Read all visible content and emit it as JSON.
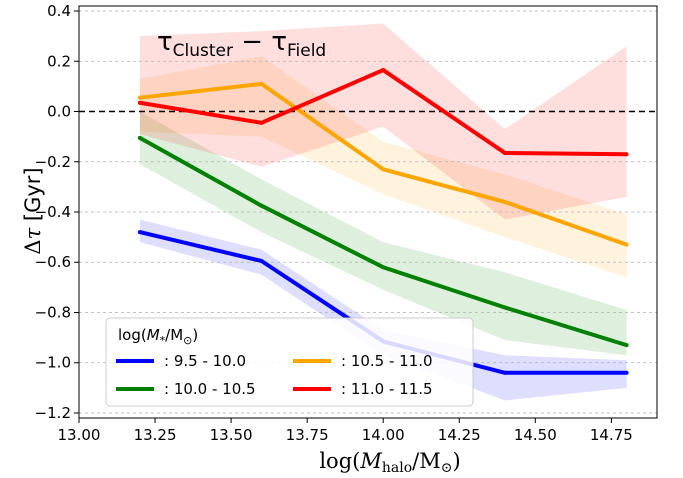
{
  "chart_data": {
    "type": "line",
    "annotation": {
      "main": "τ",
      "sub1": "Cluster",
      "dash": " − ",
      "main2": "τ",
      "sub2": "Field"
    },
    "xlabel": {
      "pre": "log(",
      "M": "M",
      "sub": "halo",
      "mid": "/M",
      "sun": "⊙",
      "post": ")"
    },
    "ylabel": {
      "delta": "Δ",
      "tau": "τ",
      "unit": " [Gyr]"
    },
    "xlim": [
      13.0,
      14.9
    ],
    "ylim": [
      -1.22,
      0.42
    ],
    "xticks": [
      13.0,
      13.25,
      13.5,
      13.75,
      14.0,
      14.25,
      14.5,
      14.75
    ],
    "xtick_labels": [
      "13.00",
      "13.25",
      "13.50",
      "13.75",
      "14.00",
      "14.25",
      "14.50",
      "14.75"
    ],
    "yticks": [
      0.4,
      0.2,
      0.0,
      -0.2,
      -0.4,
      -0.6,
      -0.8,
      -1.0,
      -1.2
    ],
    "ytick_labels": [
      "0.4",
      "0.2",
      "0.0",
      "−0.2",
      "−0.4",
      "−0.6",
      "−0.8",
      "−1.0",
      "−1.2"
    ],
    "grid": "horizontal-dashed",
    "reference_line": 0.0,
    "x": [
      13.2,
      13.6,
      14.0,
      14.4,
      14.8
    ],
    "legend": {
      "title": {
        "pre": "log(",
        "M": "M",
        "sub": "*",
        "post": "/M",
        "sun": "⊙",
        "end": ")"
      },
      "placement": "lower-left"
    },
    "series": [
      {
        "name": ": 9.5 - 10.0",
        "color": "#0000ff",
        "values": [
          -0.48,
          -0.595,
          -0.915,
          -1.04,
          -1.04
        ],
        "lower": [
          -0.52,
          -0.65,
          -0.97,
          -1.15,
          -1.1
        ],
        "upper": [
          -0.43,
          -0.55,
          -0.87,
          -0.97,
          -0.99
        ]
      },
      {
        "name": ": 10.0 - 10.5",
        "color": "#008000",
        "values": [
          -0.105,
          -0.375,
          -0.62,
          -0.78,
          -0.93
        ],
        "lower": [
          -0.21,
          -0.48,
          -0.71,
          -0.91,
          -0.97
        ],
        "upper": [
          0.0,
          -0.27,
          -0.52,
          -0.64,
          -0.79
        ]
      },
      {
        "name": ": 10.5 - 11.0",
        "color": "#ffa500",
        "values": [
          0.055,
          0.11,
          -0.23,
          -0.36,
          -0.53
        ],
        "lower": [
          -0.08,
          -0.1,
          -0.33,
          -0.5,
          -0.66
        ],
        "upper": [
          0.13,
          0.22,
          -0.12,
          -0.25,
          -0.41
        ]
      },
      {
        "name": ": 11.0 - 11.5",
        "color": "#ff0000",
        "values": [
          0.035,
          -0.045,
          0.165,
          -0.165,
          -0.17
        ],
        "lower": [
          -0.09,
          -0.22,
          -0.06,
          -0.43,
          -0.34
        ],
        "upper": [
          0.3,
          0.32,
          0.35,
          -0.07,
          0.26
        ]
      }
    ]
  }
}
